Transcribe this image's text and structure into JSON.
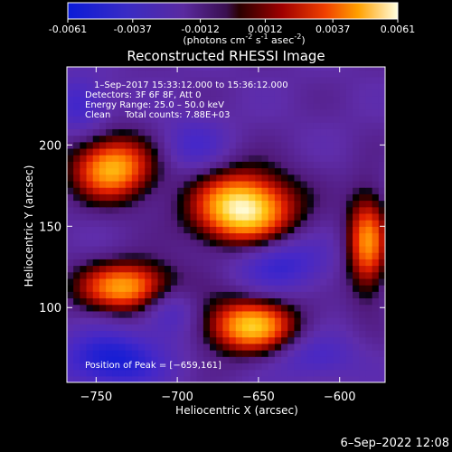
{
  "colorbar": {
    "ticks": [
      "-0.0061",
      "-0.0037",
      "-0.0012",
      "0.0012",
      "0.0037",
      "0.0061"
    ],
    "tick_values": [
      -0.0061,
      -0.0037,
      -0.0012,
      0.0012,
      0.0037,
      0.0061
    ],
    "range": [
      -0.0061,
      0.0061
    ],
    "label_main": "(photons cm",
    "label_exp1": "-2",
    "label_mid1": " s",
    "label_exp2": "-1",
    "label_mid2": " asec",
    "label_exp3": "-2",
    "label_end": ")"
  },
  "chart_data": {
    "type": "heatmap",
    "title": "Reconstructed RHESSI Image",
    "xlabel": "Heliocentric X (arcsec)",
    "ylabel": "Heliocentric Y (arcsec)",
    "xlim": [
      -768,
      -572
    ],
    "ylim": [
      54,
      248
    ],
    "xticks": [
      -750,
      -700,
      -650,
      -600
    ],
    "yticks": [
      100,
      150,
      200
    ],
    "xtick_labels": [
      "−750",
      "−700",
      "−650",
      "−600"
    ],
    "ytick_labels": [
      "100",
      "150",
      "200"
    ],
    "annotations": [
      "1–Sep–2017 15:33:12.000 to 15:36:12.000",
      "Detectors: 3F 6F 8F, Att 0",
      "Energy Range: 25.0 – 50.0 keV",
      "Clean     Total counts: 7.88E+03"
    ],
    "peak_label": "Position of Peak = [−659,161]",
    "peak": [
      -659,
      161
    ],
    "sources": [
      {
        "x": -659,
        "y": 161,
        "rx": 22,
        "ry": 16,
        "amp": 0.0061
      },
      {
        "x": -740,
        "y": 186,
        "rx": 18,
        "ry": 14,
        "amp": 0.0045
      },
      {
        "x": -730,
        "y": 113,
        "rx": 22,
        "ry": 11,
        "amp": 0.0043
      },
      {
        "x": -655,
        "y": 89,
        "rx": 20,
        "ry": 12,
        "amp": 0.0047
      },
      {
        "x": -583,
        "y": 140,
        "rx": 9,
        "ry": 22,
        "amp": 0.0037
      },
      {
        "x": -760,
        "y": 225,
        "rx": 12,
        "ry": 12,
        "amp": -0.0025
      },
      {
        "x": -705,
        "y": 100,
        "rx": 12,
        "ry": 12,
        "amp": -0.0025
      },
      {
        "x": -740,
        "y": 68,
        "rx": 22,
        "ry": 12,
        "amp": -0.004
      },
      {
        "x": -637,
        "y": 128,
        "rx": 20,
        "ry": 12,
        "amp": -0.003
      },
      {
        "x": -690,
        "y": 200,
        "rx": 14,
        "ry": 12,
        "amp": -0.002
      },
      {
        "x": -615,
        "y": 70,
        "rx": 18,
        "ry": 10,
        "amp": -0.002
      }
    ]
  },
  "footer": {
    "timestamp": "6–Sep–2022 12:08"
  }
}
